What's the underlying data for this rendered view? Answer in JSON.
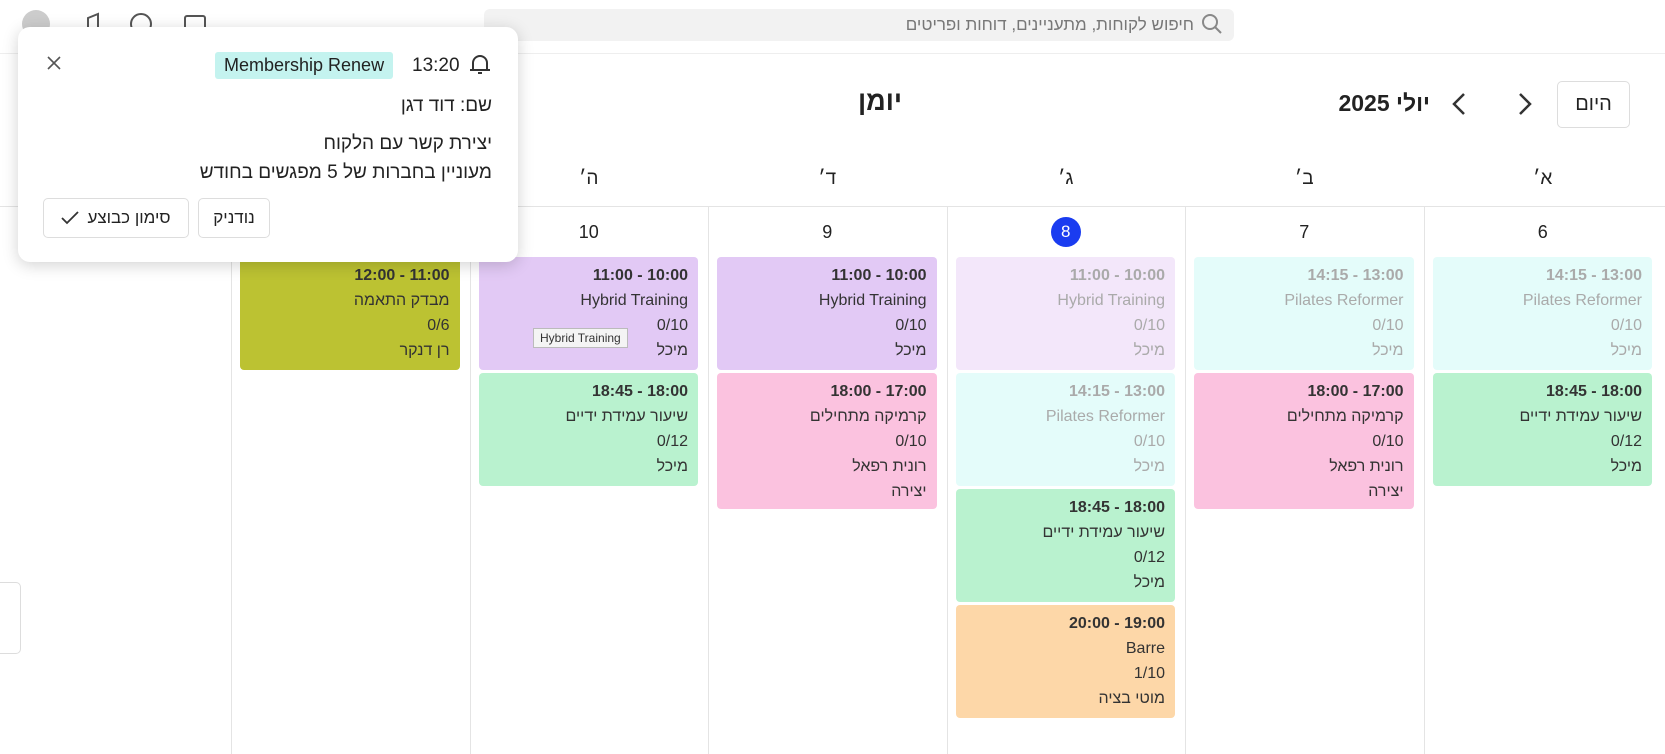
{
  "search_placeholder": "חיפוש לקוחות, מתעניינים, דוחות ופריטים",
  "calendar": {
    "title": "יומן",
    "month": "יולי 2025",
    "today_button": "היום",
    "days": [
      {
        "letter": "א׳",
        "date": "6",
        "events": [
          {
            "time": "13:00 - 14:15",
            "name": "Pilates Reformer",
            "capacity": "0/10",
            "instructor": "מיכל",
            "color": "#e4fcfa",
            "faded": true
          },
          {
            "time": "18:00 - 18:45",
            "name": "שיעור עמידת ידיים",
            "capacity": "0/12",
            "instructor": "מיכל",
            "color": "#b9f2cf"
          }
        ]
      },
      {
        "letter": "ב׳",
        "date": "7",
        "events": [
          {
            "time": "13:00 - 14:15",
            "name": "Pilates Reformer",
            "capacity": "0/10",
            "instructor": "מיכל",
            "color": "#e4fcfa",
            "faded": true
          },
          {
            "time": "17:00 - 18:00",
            "name": "קרמיקה מתחילים",
            "capacity": "0/10",
            "instructor": "רונית רפאל",
            "extra": "יצירה",
            "color": "#fbc2df"
          }
        ]
      },
      {
        "letter": "ג׳",
        "date": "8",
        "today": true,
        "events": [
          {
            "time": "10:00 - 11:00",
            "name": "Hybrid Training",
            "capacity": "0/10",
            "instructor": "מיכל",
            "color": "#f3e7fa",
            "faded": true
          },
          {
            "time": "13:00 - 14:15",
            "name": "Pilates Reformer",
            "capacity": "0/10",
            "instructor": "מיכל",
            "color": "#e4fcfa",
            "faded": true
          },
          {
            "time": "18:00 - 18:45",
            "name": "שיעור עמידת ידיים",
            "capacity": "0/12",
            "instructor": "מיכל",
            "color": "#b9f2cf"
          },
          {
            "time": "19:00 - 20:00",
            "name": "Barre",
            "capacity": "1/10",
            "instructor": "מוטי בציה",
            "color": "#fdd7a8"
          }
        ]
      },
      {
        "letter": "ד׳",
        "date": "9",
        "events": [
          {
            "time": "10:00 - 11:00",
            "name": "Hybrid Training",
            "capacity": "0/10",
            "instructor": "מיכל",
            "color": "#e2c9f5"
          },
          {
            "time": "17:00 - 18:00",
            "name": "קרמיקה מתחילים",
            "capacity": "0/10",
            "instructor": "רונית רפאל",
            "extra": "יצירה",
            "color": "#fbc2df"
          }
        ]
      },
      {
        "letter": "ה׳",
        "date": "10",
        "events": [
          {
            "time": "10:00 - 11:00",
            "name": "Hybrid Training",
            "capacity": "0/10",
            "instructor": "מיכל",
            "color": "#e2c9f5"
          },
          {
            "time": "18:00 - 18:45",
            "name": "שיעור עמידת ידיים",
            "capacity": "0/12",
            "instructor": "מיכל",
            "color": "#b9f2cf"
          }
        ]
      },
      {
        "events": [
          {
            "time": "11:00 - 12:00",
            "name": "מבדק התאמה",
            "capacity": "0/6",
            "instructor": "רן דנקר",
            "color": "#bcc232"
          }
        ]
      }
    ]
  },
  "tooltip": "Hybrid Training",
  "popup": {
    "time": "13:20",
    "tag": "Membership Renew",
    "name": "שם: דוד דגן",
    "lines": [
      "יצירת קשר עם הלקוח",
      "מעוניין בחברות של 5 מפגשים בחודש"
    ],
    "snooze": "נודניק",
    "done": "סימון כבוצע"
  }
}
